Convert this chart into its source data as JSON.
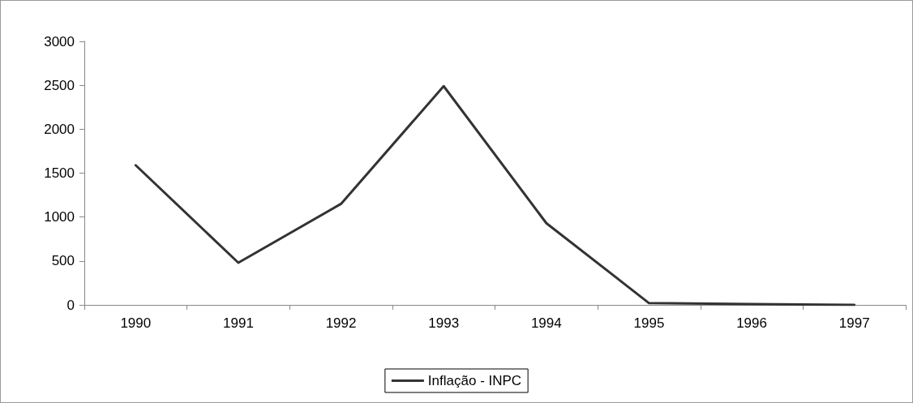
{
  "chart_data": {
    "type": "line",
    "categories": [
      "1990",
      "1991",
      "1992",
      "1993",
      "1994",
      "1995",
      "1996",
      "1997"
    ],
    "series": [
      {
        "name": "Inflação - INPC",
        "color": "#333333",
        "values": [
          1590,
          480,
          1150,
          2490,
          930,
          20,
          10,
          0
        ]
      }
    ],
    "ylim": [
      0,
      3000
    ],
    "yticks": [
      0,
      500,
      1000,
      1500,
      2000,
      2500,
      3000
    ],
    "grid": false,
    "legend": "bottom",
    "marker": "none",
    "line_style": "solid"
  }
}
